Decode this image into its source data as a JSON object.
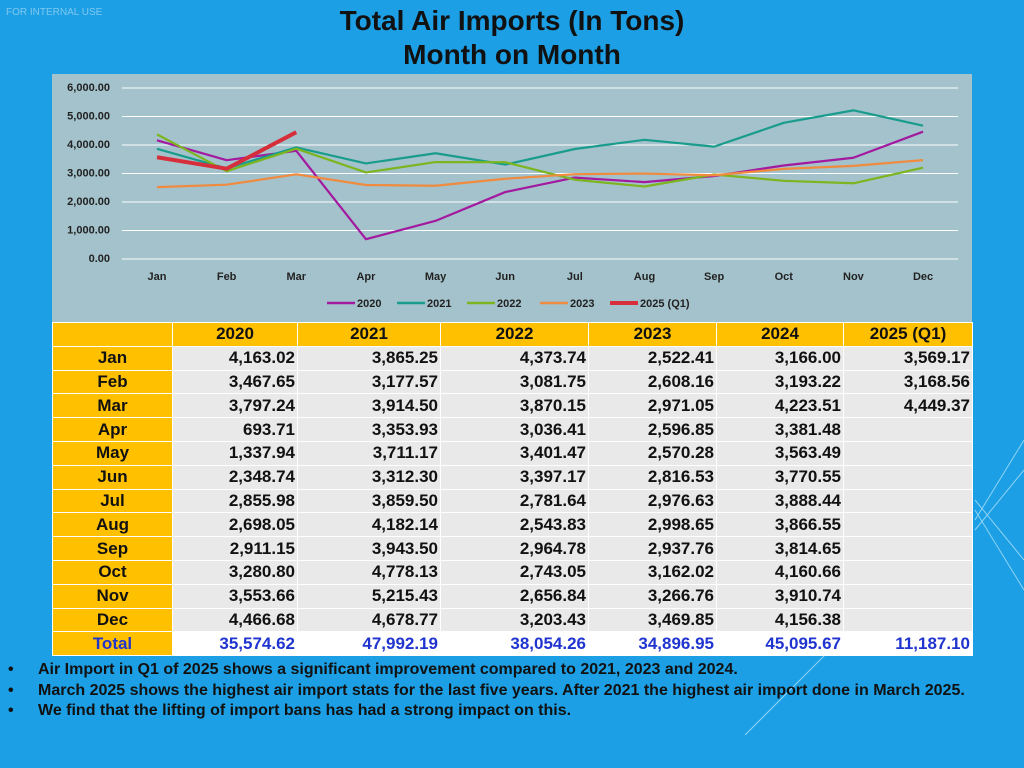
{
  "watermark": "FOR INTERNAL USE",
  "chart_data": {
    "type": "line",
    "title": "Total Air Imports (In Tons)",
    "subtitle": "Month on Month",
    "categories": [
      "Jan",
      "Feb",
      "Mar",
      "Apr",
      "May",
      "Jun",
      "Jul",
      "Aug",
      "Sep",
      "Oct",
      "Nov",
      "Dec"
    ],
    "ylim": [
      0,
      6000
    ],
    "yticks": [
      {
        "value": 0,
        "label": "0.00"
      },
      {
        "value": 1000,
        "label": "1,000.00"
      },
      {
        "value": 2000,
        "label": "2,000.00"
      },
      {
        "value": 3000,
        "label": "3,000.00"
      },
      {
        "value": 4000,
        "label": "4,000.00"
      },
      {
        "value": 5000,
        "label": "5,000.00"
      },
      {
        "value": 6000,
        "label": "6,000.00"
      }
    ],
    "grid": true,
    "legend": "bottom",
    "series": [
      {
        "name": "2020",
        "color": "#a3199f",
        "values": [
          4163.02,
          3467.65,
          3797.24,
          693.71,
          1337.94,
          2348.74,
          2855.98,
          2698.05,
          2911.15,
          3280.8,
          3553.66,
          4466.68
        ]
      },
      {
        "name": "2021",
        "color": "#199c8c",
        "values": [
          3865.25,
          3177.57,
          3914.5,
          3353.93,
          3711.17,
          3312.3,
          3859.5,
          4182.14,
          3943.5,
          4778.13,
          5215.43,
          4678.77
        ]
      },
      {
        "name": "2022",
        "color": "#7cb51f",
        "values": [
          4373.74,
          3081.75,
          3870.15,
          3036.41,
          3401.47,
          3397.17,
          2781.64,
          2543.83,
          2964.78,
          2743.05,
          2656.84,
          3203.43
        ]
      },
      {
        "name": "2023",
        "color": "#f08a3e",
        "values": [
          2522.41,
          2608.16,
          2971.05,
          2596.85,
          2570.28,
          2816.53,
          2976.63,
          2998.65,
          2937.76,
          3162.02,
          3266.76,
          3469.85
        ]
      },
      {
        "name": "2025 (Q1)",
        "color": "#d62f3b",
        "values": [
          3569.17,
          3168.56,
          4449.37,
          null,
          null,
          null,
          null,
          null,
          null,
          null,
          null,
          null
        ]
      }
    ]
  },
  "table": {
    "header": [
      null,
      "2020",
      "2021",
      "2022",
      "2023",
      "2024",
      "2025 (Q1)"
    ],
    "rows": [
      [
        "Jan",
        "4,163.02",
        "3,865.25",
        "4,373.74",
        "2,522.41",
        "3,166.00",
        "3,569.17"
      ],
      [
        "Feb",
        "3,467.65",
        "3,177.57",
        "3,081.75",
        "2,608.16",
        "3,193.22",
        "3,168.56"
      ],
      [
        "Mar",
        "3,797.24",
        "3,914.50",
        "3,870.15",
        "2,971.05",
        "4,223.51",
        "4,449.37"
      ],
      [
        "Apr",
        "693.71",
        "3,353.93",
        "3,036.41",
        "2,596.85",
        "3,381.48",
        null
      ],
      [
        "May",
        "1,337.94",
        "3,711.17",
        "3,401.47",
        "2,570.28",
        "3,563.49",
        null
      ],
      [
        "Jun",
        "2,348.74",
        "3,312.30",
        "3,397.17",
        "2,816.53",
        "3,770.55",
        null
      ],
      [
        "Jul",
        "2,855.98",
        "3,859.50",
        "2,781.64",
        "2,976.63",
        "3,888.44",
        null
      ],
      [
        "Aug",
        "2,698.05",
        "4,182.14",
        "2,543.83",
        "2,998.65",
        "3,866.55",
        null
      ],
      [
        "Sep",
        "2,911.15",
        "3,943.50",
        "2,964.78",
        "2,937.76",
        "3,814.65",
        null
      ],
      [
        "Oct",
        "3,280.80",
        "4,778.13",
        "2,743.05",
        "3,162.02",
        "4,160.66",
        null
      ],
      [
        "Nov",
        "3,553.66",
        "5,215.43",
        "2,656.84",
        "3,266.76",
        "3,910.74",
        null
      ],
      [
        "Dec",
        "4,466.68",
        "4,678.77",
        "3,203.43",
        "3,469.85",
        "4,156.38",
        null
      ]
    ],
    "total": [
      "Total",
      "35,574.62",
      "47,992.19",
      "38,054.26",
      "34,896.95",
      "45,095.67",
      "11,187.10"
    ]
  },
  "bullets": [
    "Air Import in Q1 of 2025 shows a significant improvement compared to 2021, 2023 and 2024.",
    "March 2025 shows the highest air import stats for the last five years. After 2021 the highest air import done in March 2025.",
    "We find that the lifting of import bans has had a strong impact on this."
  ]
}
